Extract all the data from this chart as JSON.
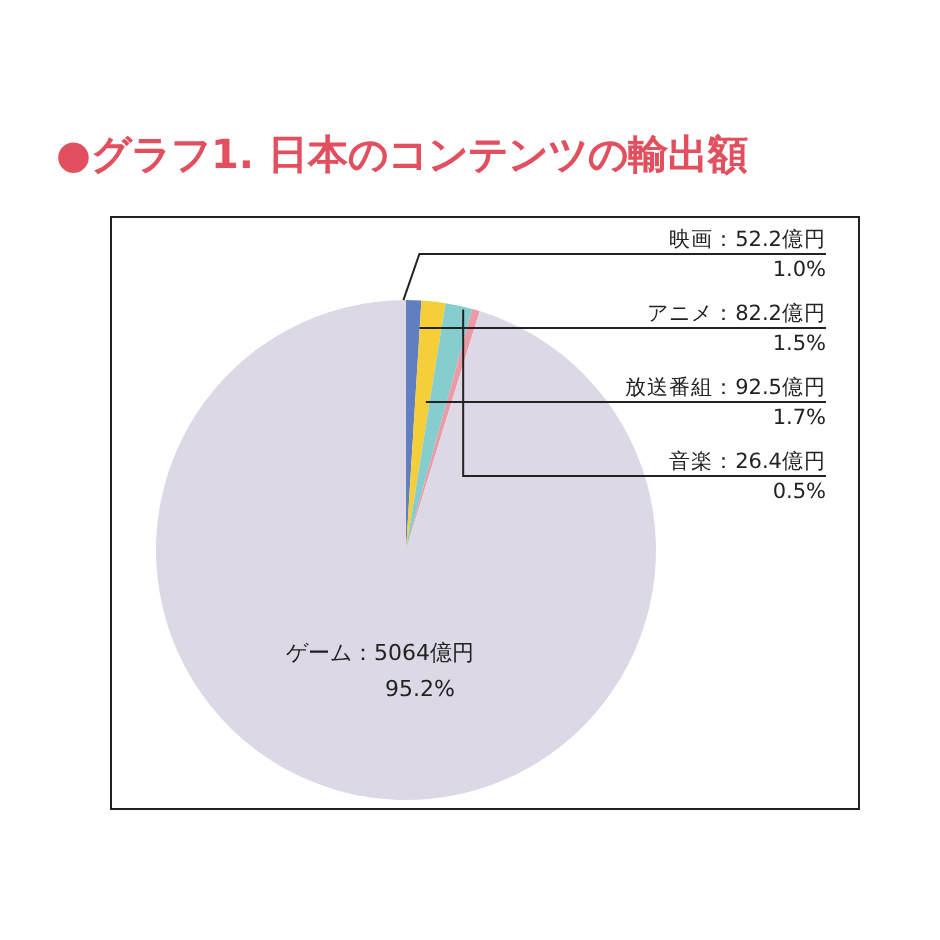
{
  "chart_data": {
    "type": "pie",
    "title": "●グラフ1. 日本のコンテンツの輸出額",
    "categories": [
      "映画",
      "アニメ",
      "放送番組",
      "音楽",
      "ゲーム"
    ],
    "values": [
      52.2,
      82.2,
      92.5,
      26.4,
      5064
    ],
    "value_labels": [
      "52.2億円\n1.0%",
      "82.2億円\n1.5%",
      "92.5億円\n1.7%",
      "26.4億円\n0.5%",
      "5064億円\n95.2%"
    ],
    "colors": [
      "#5f7fc2",
      "#f5cf3a",
      "#86cdd0",
      "#ec9aa6",
      "#dcd8e5"
    ],
    "legend": false
  }
}
